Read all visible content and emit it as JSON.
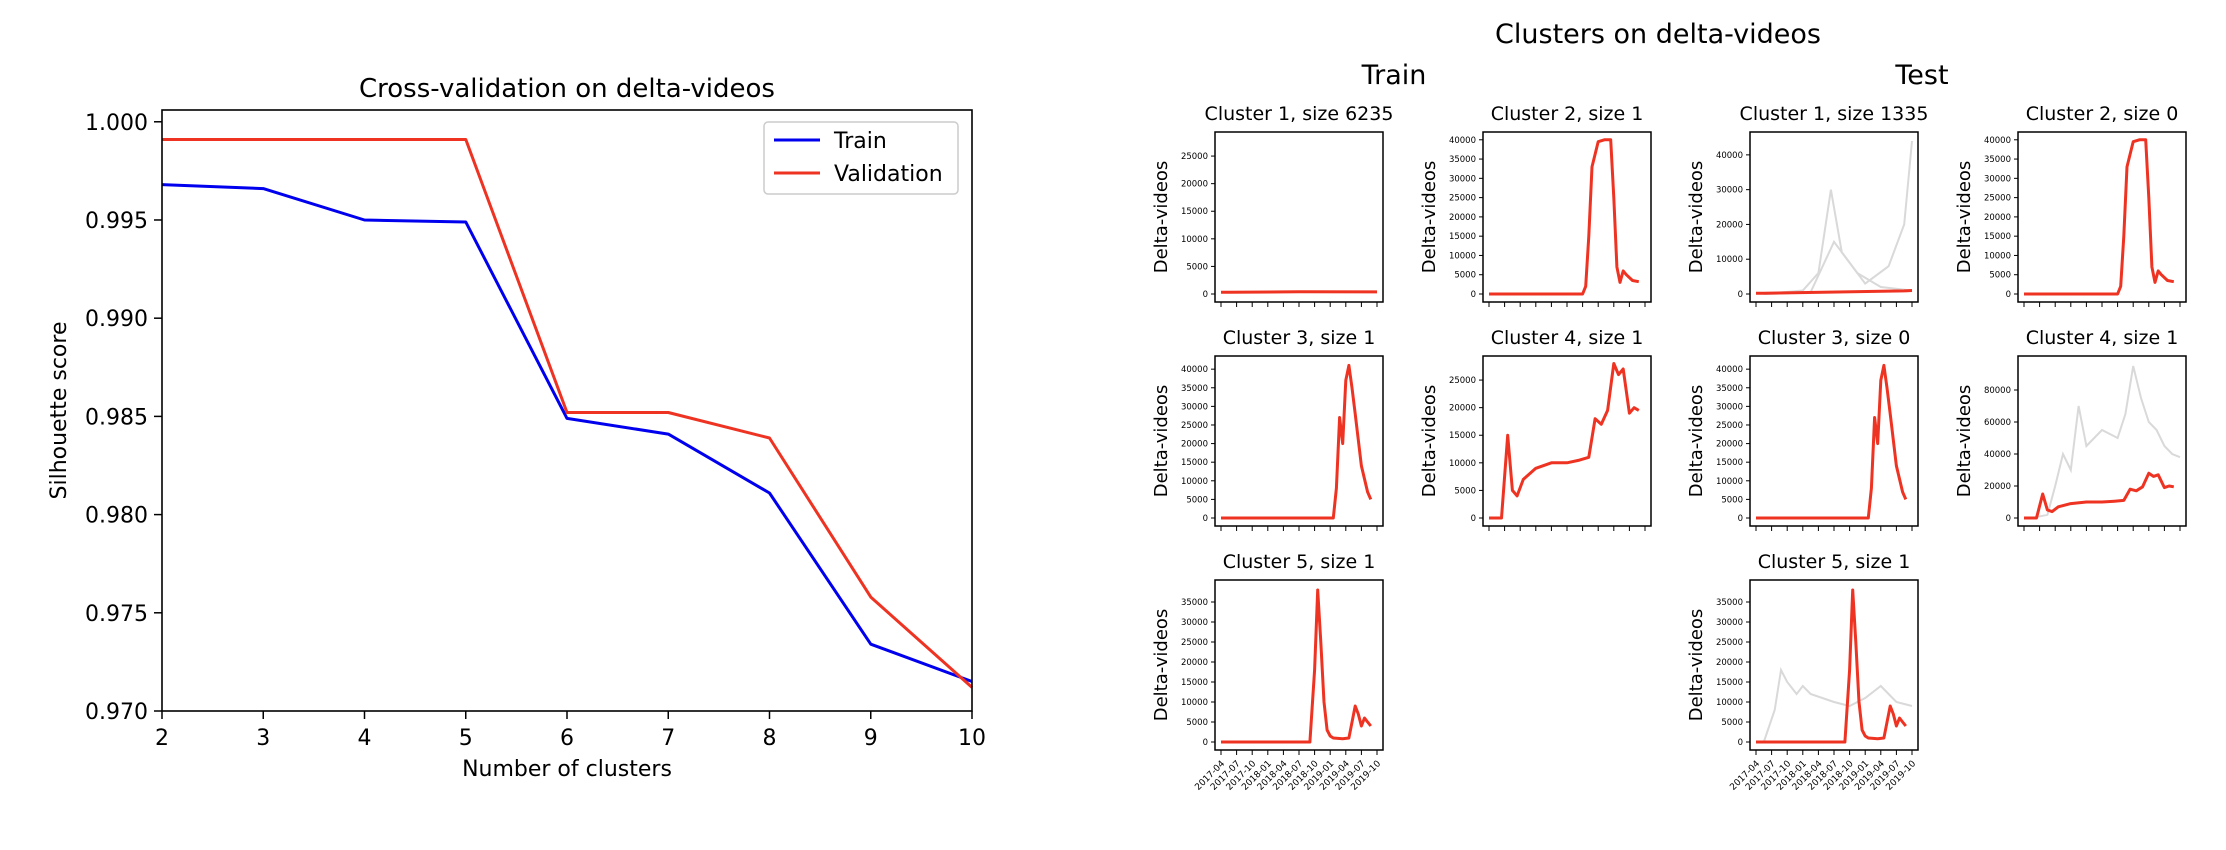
{
  "colors": {
    "train": "#0000ee",
    "validation": "#ee3322",
    "ghost": "#d9d9d9",
    "axis": "#000000"
  },
  "chart_data": [
    {
      "type": "line",
      "title": "Cross-validation on delta-videos",
      "xlabel": "Number of clusters",
      "ylabel": "Silhouette score",
      "xlim": [
        2,
        10
      ],
      "ylim": [
        0.97,
        1.0006
      ],
      "x_ticks": [
        2,
        3,
        4,
        5,
        6,
        7,
        8,
        9,
        10
      ],
      "y_ticks": [
        0.97,
        0.975,
        0.98,
        0.985,
        0.99,
        0.995,
        1.0
      ],
      "y_tick_labels": [
        "0.970",
        "0.975",
        "0.980",
        "0.985",
        "0.990",
        "0.995",
        "1.000"
      ],
      "legend_position": "top-right",
      "grid": false,
      "x": [
        2,
        3,
        4,
        5,
        6,
        7,
        8,
        9,
        10
      ],
      "series": [
        {
          "name": "Train",
          "color_key": "train",
          "values": [
            0.9968,
            0.9966,
            0.995,
            0.9949,
            0.9849,
            0.9841,
            0.9811,
            0.9734,
            0.9715
          ]
        },
        {
          "name": "Validation",
          "color_key": "validation",
          "values": [
            0.9991,
            0.9991,
            0.9991,
            0.9991,
            0.9852,
            0.9852,
            0.9839,
            0.9758,
            0.9712
          ]
        }
      ]
    },
    {
      "type": "line",
      "title": "Clusters on delta-videos",
      "groups": [
        "Train",
        "Test"
      ],
      "ylabel": "Delta-videos",
      "date_labels": [
        "2017-04",
        "2017-07",
        "2017-10",
        "2018-01",
        "2018-04",
        "2018-07",
        "2018-10",
        "2019-01",
        "2019-04",
        "2019-07",
        "2019-10"
      ],
      "panels": [
        {
          "group": "Train",
          "title": "Cluster 1, size 6235",
          "ymax": 29000,
          "yticks": [
            0,
            5000,
            10000,
            15000,
            20000,
            25000
          ],
          "x": [
            0,
            0.05,
            0.5,
            1
          ],
          "values": [
            300,
            300,
            420,
            380
          ]
        },
        {
          "group": "Train",
          "title": "Cluster 2, size 1",
          "ymax": 41500,
          "yticks": [
            0,
            5000,
            10000,
            15000,
            20000,
            25000,
            30000,
            35000,
            40000
          ],
          "x": [
            0,
            0.05,
            0.6,
            0.62,
            0.64,
            0.66,
            0.7,
            0.74,
            0.78,
            0.8,
            0.82,
            0.84,
            0.86,
            0.88,
            0.92,
            0.96
          ],
          "values": [
            0,
            0,
            0,
            2000,
            15000,
            33000,
            39500,
            40000,
            40000,
            25000,
            7000,
            3000,
            6000,
            5000,
            3500,
            3200
          ]
        },
        {
          "group": "Test",
          "title": "Cluster 1, size 1335",
          "ymax": 46000,
          "yticks": [
            0,
            10000,
            20000,
            30000,
            40000
          ],
          "x": [
            0,
            0.05,
            0.95,
            1
          ],
          "values": [
            200,
            200,
            900,
            1000
          ],
          "ghost": [
            {
              "x": [
                0.05,
                0.3,
                0.4,
                0.48,
                0.55,
                0.7,
                0.85,
                0.95,
                1
              ],
              "values": [
                0,
                1000,
                6000,
                30000,
                12000,
                3000,
                8000,
                20000,
                44000
              ]
            },
            {
              "x": [
                0.05,
                0.35,
                0.5,
                0.65,
                0.8,
                1
              ],
              "values": [
                0,
                500,
                15000,
                6000,
                2000,
                1000
              ]
            }
          ]
        },
        {
          "group": "Test",
          "title": "Cluster 2, size 0",
          "ymax": 41500,
          "yticks": [
            0,
            5000,
            10000,
            15000,
            20000,
            25000,
            30000,
            35000,
            40000
          ],
          "x": [
            0,
            0.05,
            0.6,
            0.62,
            0.64,
            0.66,
            0.7,
            0.74,
            0.78,
            0.8,
            0.82,
            0.84,
            0.86,
            0.88,
            0.92,
            0.96
          ],
          "values": [
            0,
            0,
            0,
            2000,
            15000,
            33000,
            39500,
            40000,
            40000,
            25000,
            7000,
            3000,
            6000,
            5000,
            3500,
            3200
          ]
        },
        {
          "group": "Train",
          "title": "Cluster 3, size 1",
          "ymax": 43000,
          "yticks": [
            0,
            5000,
            10000,
            15000,
            20000,
            25000,
            30000,
            35000,
            40000
          ],
          "x": [
            0,
            0.05,
            0.72,
            0.74,
            0.76,
            0.78,
            0.8,
            0.82,
            0.84,
            0.86,
            0.9,
            0.94,
            0.96
          ],
          "values": [
            0,
            0,
            0,
            8000,
            27000,
            20000,
            37000,
            41000,
            35000,
            28000,
            14000,
            7000,
            5000
          ]
        },
        {
          "group": "Train",
          "title": "Cluster 4, size 1",
          "ymax": 29000,
          "yticks": [
            0,
            5000,
            10000,
            15000,
            20000,
            25000
          ],
          "x": [
            0,
            0.05,
            0.08,
            0.12,
            0.15,
            0.18,
            0.22,
            0.3,
            0.4,
            0.5,
            0.58,
            0.64,
            0.68,
            0.72,
            0.76,
            0.8,
            0.83,
            0.86,
            0.88,
            0.9,
            0.93,
            0.96
          ],
          "values": [
            0,
            0,
            0,
            15000,
            5000,
            4000,
            7000,
            9000,
            10000,
            10000,
            10500,
            11000,
            18000,
            17000,
            19500,
            28000,
            26000,
            27000,
            23000,
            19000,
            20000,
            19500
          ]
        },
        {
          "group": "Test",
          "title": "Cluster 3, size 0",
          "ymax": 43000,
          "yticks": [
            0,
            5000,
            10000,
            15000,
            20000,
            25000,
            30000,
            35000,
            40000
          ],
          "x": [
            0,
            0.05,
            0.72,
            0.74,
            0.76,
            0.78,
            0.8,
            0.82,
            0.84,
            0.86,
            0.9,
            0.94,
            0.96
          ],
          "values": [
            0,
            0,
            0,
            8000,
            27000,
            20000,
            37000,
            41000,
            35000,
            28000,
            14000,
            7000,
            5000
          ]
        },
        {
          "group": "Test",
          "title": "Cluster 4, size 1",
          "ymax": 100000,
          "yticks": [
            0,
            20000,
            40000,
            60000,
            80000
          ],
          "x": [
            0,
            0.05,
            0.08,
            0.12,
            0.15,
            0.18,
            0.22,
            0.3,
            0.4,
            0.5,
            0.58,
            0.64,
            0.68,
            0.72,
            0.76,
            0.8,
            0.83,
            0.86,
            0.88,
            0.9,
            0.93,
            0.96
          ],
          "values": [
            0,
            0,
            0,
            15000,
            5000,
            4000,
            7000,
            9000,
            10000,
            10000,
            10500,
            11000,
            18000,
            17000,
            19500,
            28000,
            26000,
            27000,
            23000,
            19000,
            20000,
            19500
          ],
          "ghost": [
            {
              "x": [
                0.05,
                0.15,
                0.2,
                0.25,
                0.3,
                0.35,
                0.4,
                0.5,
                0.6,
                0.65,
                0.7,
                0.75,
                0.8,
                0.85,
                0.9,
                0.95,
                1
              ],
              "values": [
                0,
                2000,
                20000,
                40000,
                30000,
                70000,
                45000,
                55000,
                50000,
                65000,
                95000,
                75000,
                60000,
                55000,
                45000,
                40000,
                38000
              ]
            }
          ]
        },
        {
          "group": "Train",
          "title": "Cluster 5, size 1",
          "ymax": 40000,
          "yticks": [
            0,
            5000,
            10000,
            15000,
            20000,
            25000,
            30000,
            35000
          ],
          "x": [
            0,
            0.05,
            0.57,
            0.6,
            0.62,
            0.64,
            0.66,
            0.68,
            0.7,
            0.72,
            0.78,
            0.82,
            0.86,
            0.88,
            0.9,
            0.92,
            0.94,
            0.96
          ],
          "values": [
            0,
            0,
            0,
            18000,
            38000,
            25000,
            10000,
            3000,
            1500,
            1000,
            800,
            1000,
            9000,
            7000,
            4000,
            6000,
            5000,
            4000
          ]
        },
        {
          "group": "Test",
          "title": "Cluster 5, size 1",
          "ymax": 40000,
          "yticks": [
            0,
            5000,
            10000,
            15000,
            20000,
            25000,
            30000,
            35000
          ],
          "x": [
            0,
            0.05,
            0.57,
            0.6,
            0.62,
            0.64,
            0.66,
            0.68,
            0.7,
            0.72,
            0.78,
            0.82,
            0.86,
            0.88,
            0.9,
            0.92,
            0.94,
            0.96
          ],
          "values": [
            0,
            0,
            0,
            18000,
            38000,
            25000,
            10000,
            3000,
            1500,
            1000,
            800,
            1000,
            9000,
            7000,
            4000,
            6000,
            5000,
            4000
          ],
          "ghost": [
            {
              "x": [
                0.05,
                0.12,
                0.16,
                0.2,
                0.26,
                0.3,
                0.35,
                0.5,
                0.6,
                0.7,
                0.8,
                0.85,
                0.9,
                1
              ],
              "values": [
                0,
                8000,
                18000,
                15000,
                12000,
                14000,
                12000,
                10000,
                9000,
                11000,
                14000,
                12000,
                10000,
                9000
              ]
            }
          ]
        }
      ]
    }
  ]
}
